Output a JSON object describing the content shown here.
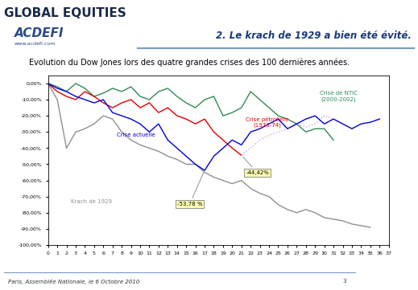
{
  "header": {
    "brand": "GLOBAL EQUITIES",
    "logo": "ACDEFI",
    "website": "www.acdefi.com",
    "slide_title": "2. Le krach de 1929 a bien été évité."
  },
  "footer": {
    "text": "Paris, Assemblée Nationale, le 6 Octobre 2010",
    "page": "3"
  },
  "chart_data": {
    "type": "line",
    "title": "Evolution du Dow Jones lors des quatre grandes crises des 100 dernières années.",
    "x": [
      0,
      1,
      2,
      3,
      4,
      5,
      6,
      7,
      8,
      9,
      10,
      11,
      12,
      13,
      14,
      15,
      16,
      17,
      18,
      19,
      20,
      21,
      22,
      23,
      24,
      25,
      26,
      27,
      28,
      29,
      30,
      31,
      32,
      33,
      34,
      35,
      36
    ],
    "series": [
      {
        "name": "Krach de 1929",
        "color": "#909090",
        "values": [
          0,
          -10,
          -40,
          -30,
          -28,
          -25,
          -20,
          -22,
          -30,
          -35,
          -38,
          -40,
          -42,
          -45,
          -47,
          -50,
          -50,
          -55,
          -58,
          -60,
          -62,
          -60,
          -65,
          -68,
          -70,
          -75,
          -78,
          -80,
          -78,
          -80,
          -83,
          -84,
          -85,
          -87,
          -88,
          -89,
          null
        ]
      },
      {
        "name": "Crise de NTIC (2000-2002)",
        "color": "#2e8b57",
        "values": [
          0,
          -2,
          -5,
          0,
          -3,
          -8,
          -6,
          -3,
          -5,
          -2,
          -8,
          -10,
          -5,
          -3,
          -8,
          -12,
          -15,
          -10,
          -8,
          -20,
          -18,
          -15,
          -5,
          -10,
          -15,
          -20,
          -22,
          -25,
          -30,
          -28,
          -28,
          -35,
          null,
          null,
          null,
          null,
          null
        ]
      },
      {
        "name": "Crise pétrolière (1973-74)",
        "color": "#e00000",
        "values": [
          0,
          -5,
          -8,
          -10,
          -5,
          -8,
          -12,
          -15,
          -12,
          -10,
          -15,
          -12,
          -18,
          -15,
          -20,
          -22,
          -25,
          -22,
          -30,
          -35,
          -40,
          -44.42,
          null,
          null,
          null,
          null,
          null,
          null,
          null,
          null,
          null,
          null,
          null,
          null,
          null,
          null,
          null
        ]
      },
      {
        "color": "#d8a0e0",
        "line_style": "dotted",
        "values": [
          null,
          null,
          null,
          null,
          null,
          null,
          null,
          null,
          null,
          null,
          null,
          null,
          null,
          null,
          null,
          null,
          null,
          null,
          null,
          null,
          null,
          -44.42,
          -40,
          -35,
          -32,
          -30,
          -28,
          -25,
          -27,
          -25,
          -20,
          -22,
          null,
          null,
          null,
          null,
          null
        ]
      },
      {
        "name": "Crise actuelle",
        "color": "#0000e0",
        "values": [
          0,
          -3,
          -5,
          -8,
          -10,
          -12,
          -10,
          -18,
          -20,
          -22,
          -25,
          -30,
          -25,
          -35,
          -40,
          -45,
          -50,
          -53.78,
          -45,
          -40,
          -35,
          -38,
          -30,
          -28,
          -25,
          -22,
          -28,
          -25,
          -22,
          -20,
          -25,
          -22,
          -25,
          -28,
          -25,
          -24,
          -22
        ]
      }
    ],
    "annotations": [
      {
        "text": "-53,78 %",
        "x": 17,
        "y": -53.78
      },
      {
        "text": "-44,42%",
        "x": 21,
        "y": -44.42
      }
    ],
    "xlim": [
      0,
      37
    ],
    "xticks": [
      0,
      1,
      2,
      3,
      4,
      5,
      6,
      7,
      8,
      9,
      10,
      11,
      12,
      13,
      14,
      15,
      16,
      17,
      18,
      19,
      20,
      21,
      22,
      23,
      24,
      25,
      26,
      27,
      28,
      29,
      30,
      31,
      32,
      33,
      34,
      35,
      36,
      37
    ],
    "ylim": [
      -100,
      5
    ],
    "yticks": [
      {
        "value": 0,
        "label": "0,00%"
      },
      {
        "value": -10,
        "label": "-10,00%"
      },
      {
        "value": -20,
        "label": "-20,00%"
      },
      {
        "value": -30,
        "label": "-30,00%"
      },
      {
        "value": -40,
        "label": "-40,00%"
      },
      {
        "value": -50,
        "label": "-50,00%"
      },
      {
        "value": -60,
        "label": "-60,00%"
      },
      {
        "value": -70,
        "label": "-70,00%"
      },
      {
        "value": -80,
        "label": "-80,00%"
      },
      {
        "value": -90,
        "label": "-90,00%"
      },
      {
        "value": -100,
        "label": "-100,00%"
      }
    ],
    "grid": false
  }
}
